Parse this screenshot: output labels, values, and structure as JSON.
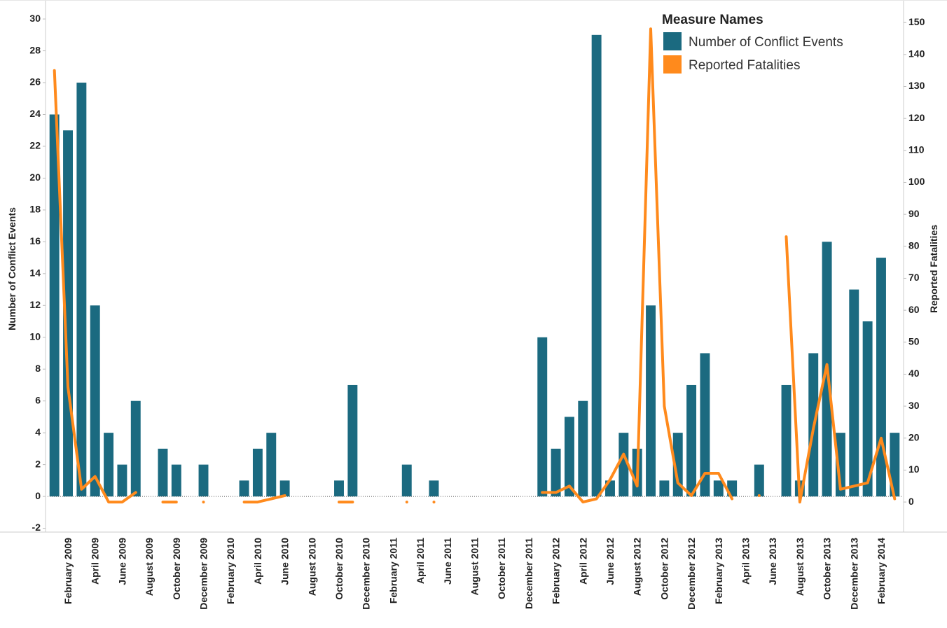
{
  "chart_data": {
    "type": "combo",
    "categories": [
      null,
      "February 2009",
      null,
      "April 2009",
      null,
      "June 2009",
      null,
      "August 2009",
      null,
      "October 2009",
      null,
      "December 2009",
      null,
      "February 2010",
      null,
      "April 2010",
      null,
      "June 2010",
      null,
      "August 2010",
      null,
      "October 2010",
      null,
      "December 2010",
      null,
      "February 2011",
      null,
      "April 2011",
      null,
      "June 2011",
      null,
      "August 2011",
      null,
      "October 2011",
      null,
      "December 2011",
      null,
      "February 2012",
      null,
      "April 2012",
      null,
      "June 2012",
      null,
      "August 2012",
      null,
      "October 2012",
      null,
      "December 2012",
      null,
      "February 2013",
      null,
      "April 2013",
      null,
      "June 2013",
      null,
      "August 2013",
      null,
      "October 2013",
      null,
      "December 2013",
      null,
      "February 2014",
      null
    ],
    "series": [
      {
        "name": "Number of Conflict Events",
        "type": "bar",
        "color": "#1b6a80",
        "values": [
          24,
          23,
          26,
          12,
          4,
          2,
          6,
          null,
          3,
          2,
          null,
          2,
          null,
          null,
          1,
          3,
          4,
          1,
          null,
          null,
          null,
          1,
          7,
          null,
          null,
          null,
          2,
          null,
          1,
          null,
          null,
          null,
          null,
          null,
          null,
          null,
          10,
          3,
          5,
          6,
          29,
          1,
          4,
          3,
          12,
          1,
          4,
          7,
          9,
          1,
          1,
          null,
          2,
          null,
          7,
          1,
          9,
          16,
          4,
          13,
          11,
          15,
          4
        ]
      },
      {
        "name": "Reported Fatalities",
        "type": "line",
        "axis": "y2",
        "color": "#ff8a1c",
        "values": [
          135,
          36,
          4,
          8,
          0,
          0,
          3,
          null,
          0,
          0,
          null,
          0,
          null,
          null,
          0,
          0,
          1,
          2,
          null,
          null,
          null,
          0,
          0,
          null,
          null,
          null,
          0,
          null,
          0,
          null,
          null,
          null,
          null,
          null,
          null,
          null,
          3,
          3,
          5,
          0,
          1,
          7,
          15,
          5,
          148,
          30,
          6,
          2,
          9,
          9,
          1,
          null,
          2,
          null,
          83,
          0,
          23,
          43,
          4,
          5,
          6,
          20,
          1
        ]
      }
    ],
    "ylabel": "Number of Conflict Events",
    "y2label": "Reported Fatalities",
    "ylim": [
      -2.24,
      30.84
    ],
    "yticks": [
      -2,
      0,
      2,
      4,
      6,
      8,
      10,
      12,
      14,
      16,
      18,
      20,
      22,
      24,
      26,
      28,
      30
    ],
    "y2lim": [
      -9.4,
      155.3
    ],
    "y2ticks": [
      0,
      10,
      20,
      30,
      40,
      50,
      60,
      70,
      80,
      90,
      100,
      110,
      120,
      130,
      140,
      150
    ],
    "zero_line": true,
    "legend": {
      "title": "Measure Names",
      "position": "upper right"
    }
  }
}
